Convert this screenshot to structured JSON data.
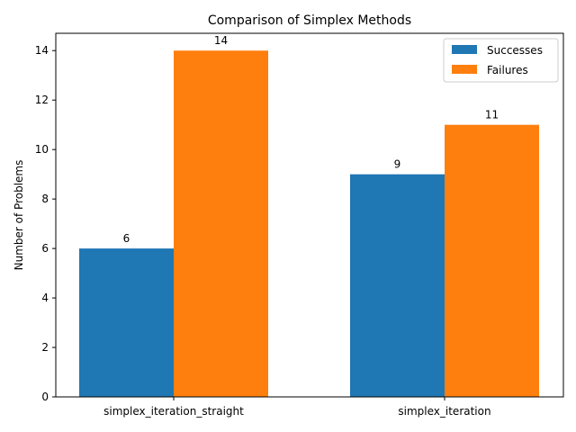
{
  "chart_data": {
    "type": "bar",
    "title": "Comparison of Simplex Methods",
    "xlabel": "",
    "ylabel": "Number of Problems",
    "categories": [
      "simplex_iteration_straight",
      "simplex_iteration"
    ],
    "series": [
      {
        "name": "Successes",
        "color": "#1f77b4",
        "values": [
          6,
          9
        ]
      },
      {
        "name": "Failures",
        "color": "#ff7f0e",
        "values": [
          14,
          11
        ]
      }
    ],
    "ylim": [
      0,
      14.7
    ],
    "yticks": [
      0,
      2,
      4,
      6,
      8,
      10,
      12,
      14
    ],
    "grid": false,
    "legend_position": "top-right",
    "data_labels": true
  }
}
